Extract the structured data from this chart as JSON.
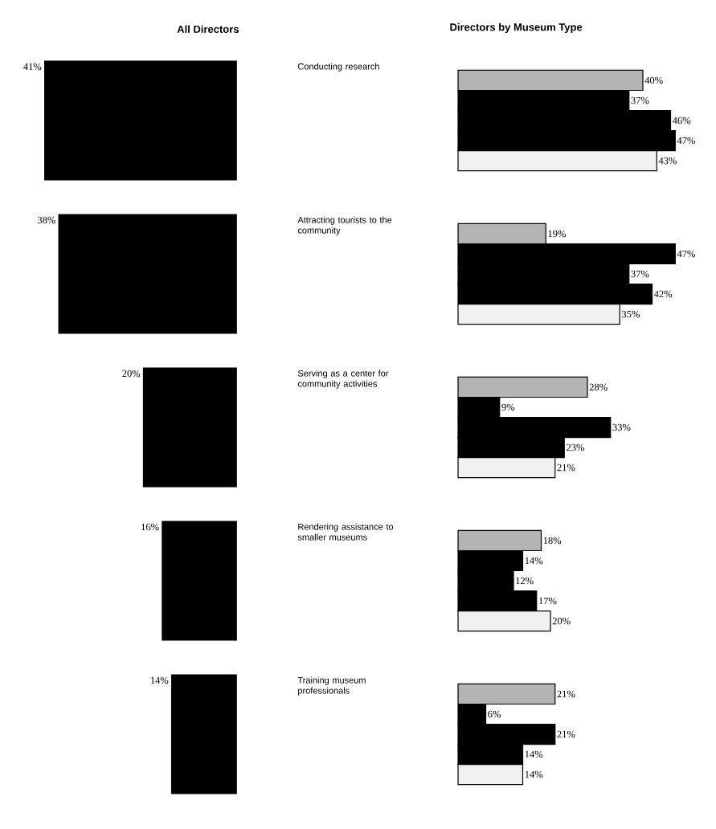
{
  "chart_data": [
    {
      "type": "bar",
      "title": "All Directors",
      "orientation": "horizontal",
      "categories": [
        "Conducting research",
        "Attracting tourists to the community",
        "Serving as a center for community activities",
        "Rendering assistance to smaller museums",
        "Training museum professionals"
      ],
      "values": [
        41,
        38,
        20,
        16,
        14
      ],
      "value_labels": [
        "41%",
        "38%",
        "20%",
        "16%",
        "14%"
      ],
      "color": "#000000",
      "xlim": [
        41,
        0
      ],
      "tick_labels": "y"
    },
    {
      "type": "bar",
      "title": "Directors by Museum Type",
      "orientation": "horizontal",
      "xlim": [
        0,
        47
      ],
      "tick_labels": false,
      "categories": [
        null,
        null,
        null,
        null,
        null
      ],
      "series": [
        {
          "color": "#b4b4b4",
          "values": [
            40,
            19,
            28,
            18,
            21
          ],
          "value_labels": [
            "40%",
            "19%",
            "28%",
            "18%",
            "21%"
          ]
        },
        {
          "color": "#000000",
          "values": [
            37,
            47,
            9,
            14,
            6
          ],
          "value_labels": [
            "37%",
            "47%",
            "9%",
            "14%",
            "6%"
          ]
        },
        {
          "color": "#000000",
          "values": [
            46,
            37,
            33,
            12,
            21
          ],
          "value_labels": [
            "46%",
            "37%",
            "33%",
            "12%",
            "21%"
          ]
        },
        {
          "color": "#000000",
          "values": [
            47,
            42,
            23,
            17,
            14
          ],
          "value_labels": [
            "47%",
            "42%",
            "23%",
            "17%",
            "14%"
          ]
        },
        {
          "color": "#f0f0f0",
          "values": [
            43,
            35,
            21,
            20,
            14
          ],
          "value_labels": [
            "43%",
            "35%",
            "21%",
            "20%",
            "14%"
          ]
        }
      ]
    }
  ]
}
